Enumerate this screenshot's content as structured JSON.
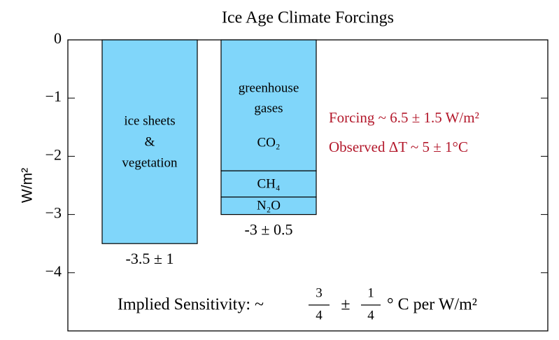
{
  "chart_data": {
    "type": "bar",
    "title": "Ice Age Climate Forcings",
    "ylabel": "W/m²",
    "ylim": [
      -5,
      0
    ],
    "yticks": [
      0,
      {
        "value": -1,
        "label": "−1"
      },
      {
        "value": -2,
        "label": "−2"
      },
      {
        "value": -3,
        "label": "−3"
      },
      {
        "value": -4,
        "label": "−4"
      }
    ],
    "bars": [
      {
        "labels": [
          "ice sheets",
          "&",
          "vegetation"
        ],
        "value": -3.5,
        "value_label": "-3.5 ± 1",
        "color": "#80d6fa"
      },
      {
        "labels": [
          "greenhouse",
          "gases"
        ],
        "color": "#80d6fa",
        "value_label": "-3 ± 0.5",
        "segments": [
          {
            "name": "CO₂",
            "value": -2.25
          },
          {
            "name": "CH₄",
            "value": -0.45
          },
          {
            "name": "N₂O",
            "value": -0.3
          }
        ]
      }
    ],
    "annotations": [
      "Forcing ~ 6.5 ± 1.5 W/m²",
      "Observed ΔT ~ 5 ± 1°C"
    ],
    "annotation_color": "#b3182b",
    "sensitivity": {
      "text": "Implied Sensitivity: ~",
      "frac1": [
        "3",
        "4"
      ],
      "pm": "±",
      "frac2": [
        "1",
        "4"
      ],
      "unit": "° C per W/m²"
    }
  }
}
